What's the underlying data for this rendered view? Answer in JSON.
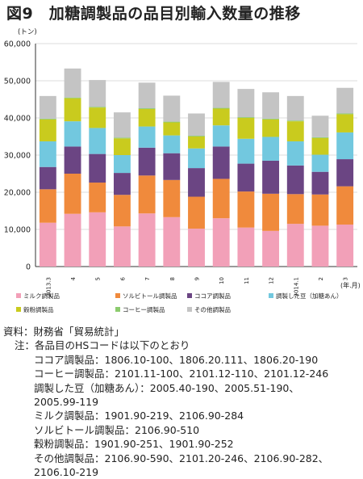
{
  "figure_title": "図9　加糖調製品の品目別輸入数量の推移",
  "chart_data": {
    "type": "bar",
    "stacked": true,
    "unit_label": "(トン)",
    "xlabel": "(年.月)",
    "ylim": [
      0,
      60000
    ],
    "yticks": [
      0,
      10000,
      20000,
      30000,
      40000,
      50000,
      60000
    ],
    "ytick_labels": [
      "0",
      "10,000",
      "20,000",
      "30,000",
      "40,000",
      "50,000",
      "60,000"
    ],
    "grid": true,
    "legend_position": "bottom",
    "categories": [
      "2013.3",
      "4",
      "5",
      "6",
      "7",
      "8",
      "9",
      "10",
      "11",
      "12",
      "2014.1",
      "2",
      "3"
    ],
    "series": [
      {
        "name": "ミルク調製品",
        "color": "#f2a0b8",
        "values": [
          11800,
          14200,
          14600,
          10800,
          14300,
          13300,
          10200,
          13000,
          10500,
          9600,
          11500,
          11000,
          11300
        ]
      },
      {
        "name": "ソルビトール調製品",
        "color": "#f08a3c",
        "values": [
          9000,
          10800,
          8000,
          8500,
          10200,
          10000,
          8600,
          10600,
          9700,
          10000,
          8000,
          8400,
          10300
        ]
      },
      {
        "name": "ココア調製品",
        "color": "#6b4583",
        "values": [
          6000,
          7300,
          7700,
          5900,
          7500,
          7200,
          7700,
          8700,
          7500,
          8900,
          7700,
          6100,
          7300
        ]
      },
      {
        "name": "調製した豆（加糖あん）",
        "color": "#72c8df",
        "values": [
          6900,
          6800,
          7000,
          4800,
          5700,
          4800,
          5300,
          5700,
          6700,
          6400,
          6500,
          4600,
          7200
        ]
      },
      {
        "name": "穀粉調製品",
        "color": "#c9cb1e",
        "values": [
          5900,
          6200,
          5500,
          4500,
          4700,
          3500,
          3200,
          4500,
          5600,
          4700,
          5400,
          4500,
          4900
        ]
      },
      {
        "name": "コーヒー調製品",
        "color": "#8ccb6e",
        "values": [
          200,
          200,
          200,
          200,
          200,
          200,
          200,
          200,
          200,
          200,
          200,
          200,
          200
        ]
      },
      {
        "name": "その他調製品",
        "color": "#c4c4c4",
        "values": [
          6100,
          7800,
          7200,
          6800,
          6900,
          7000,
          6000,
          7000,
          7600,
          7100,
          6600,
          5800,
          6900
        ]
      }
    ]
  },
  "notes": {
    "source": "資料：財務省「貿易統計」",
    "note_head": "注：各品目のHSコードは以下のとおり",
    "lines": [
      "ココア調製品：1806.10-100、1806.20.111、1806.20-190",
      "コーヒー調製品：2101.11-100、2101.12-110、2101.12-246",
      "調製した豆（加糖あん）：2005.40-190、2005.51-190、",
      "2005.99-119",
      "ミルク調製品：1901.90-219、2106.90-284",
      "ソルビトール調製品：2106.90-510",
      "穀粉調製品：1901.90-251、1901.90-252",
      "その他調製品：2106.90-590、2101.20-246、2106.90-282、",
      "2106.10-219"
    ]
  }
}
